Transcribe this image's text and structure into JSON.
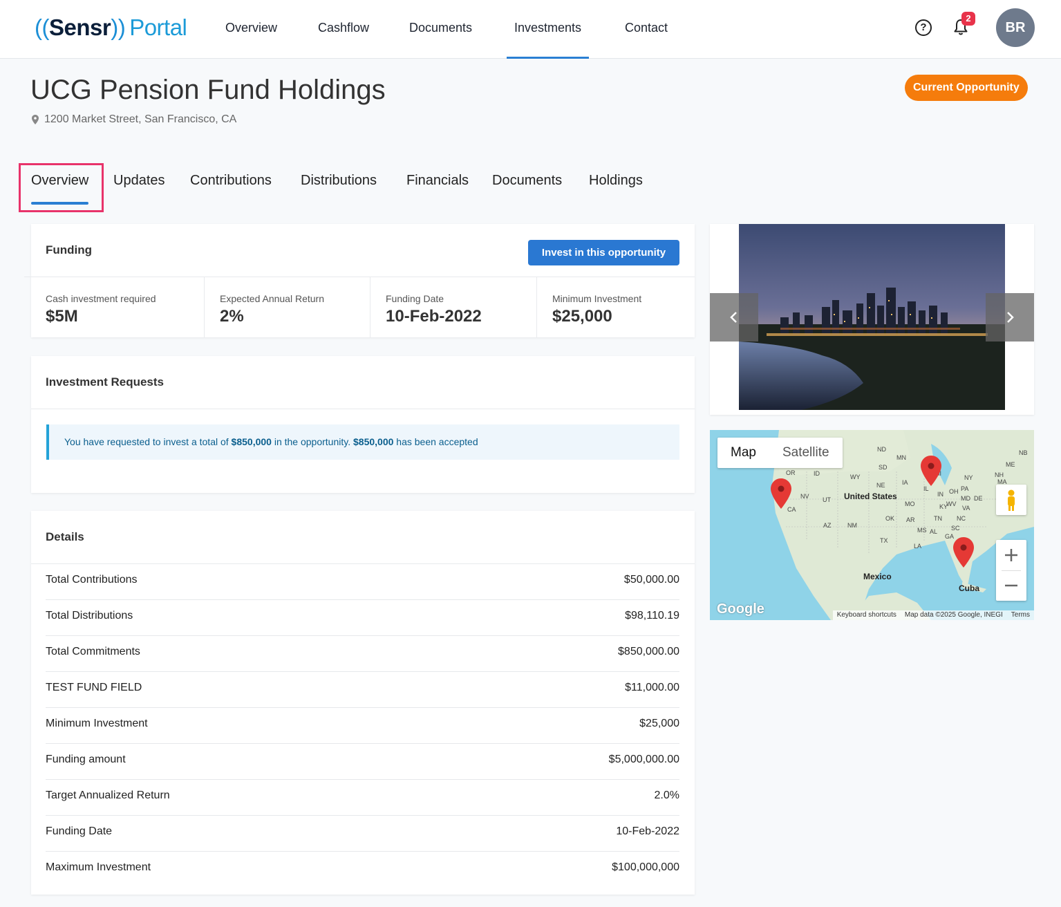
{
  "app": {
    "logo_brand": "Sensr",
    "logo_portal": "Portal"
  },
  "topnav": {
    "items": [
      {
        "label": "Overview"
      },
      {
        "label": "Cashflow"
      },
      {
        "label": "Documents"
      },
      {
        "label": "Investments"
      },
      {
        "label": "Contact"
      }
    ],
    "active": "Investments",
    "notifications_count": "2",
    "user_initials": "BR"
  },
  "header": {
    "title": "UCG Pension Fund Holdings",
    "address": "1200 Market Street, San Francisco, CA",
    "status_badge": "Current Opportunity"
  },
  "tabs": {
    "items": [
      {
        "label": "Overview"
      },
      {
        "label": "Updates"
      },
      {
        "label": "Contributions"
      },
      {
        "label": "Distributions"
      },
      {
        "label": "Financials"
      },
      {
        "label": "Documents"
      },
      {
        "label": "Holdings"
      }
    ],
    "active": "Overview"
  },
  "funding": {
    "title": "Funding",
    "invest_button": "Invest in this opportunity",
    "metrics": [
      {
        "label": "Cash investment required",
        "value": "$5M"
      },
      {
        "label": "Expected Annual Return",
        "value": "2%"
      },
      {
        "label": "Funding Date",
        "value": "10-Feb-2022"
      },
      {
        "label": "Minimum Investment",
        "value": "$25,000"
      }
    ]
  },
  "requests": {
    "title": "Investment Requests",
    "message_prefix": "You have requested to invest a total of ",
    "requested_amount": "$850,000",
    "message_middle": " in the opportunity. ",
    "accepted_amount": "$850,000",
    "message_suffix": " has been accepted"
  },
  "details": {
    "title": "Details",
    "rows": [
      {
        "label": "Total Contributions",
        "value": "$50,000.00"
      },
      {
        "label": "Total Distributions",
        "value": "$98,110.19"
      },
      {
        "label": "Total Commitments",
        "value": "$850,000.00"
      },
      {
        "label": "TEST FUND FIELD",
        "value": "$11,000.00"
      },
      {
        "label": "Minimum Investment",
        "value": "$25,000"
      },
      {
        "label": "Funding amount",
        "value": "$5,000,000.00"
      },
      {
        "label": "Target Annualized Return",
        "value": "2.0%"
      },
      {
        "label": "Funding Date",
        "value": "10-Feb-2022"
      },
      {
        "label": "Maximum Investment",
        "value": "$100,000,000"
      }
    ]
  },
  "map": {
    "type_map": "Map",
    "type_satellite": "Satellite",
    "active_type": "Map",
    "labels": {
      "united_states": "United States",
      "mexico": "Mexico",
      "cuba": "Cuba"
    },
    "footer": {
      "shortcuts": "Keyboard shortcuts",
      "data": "Map data ©2025 Google, INEGI",
      "terms": "Terms"
    },
    "google_logo": "Google"
  },
  "colors": {
    "accent": "#2a7fd3",
    "badge_orange": "#f57c0c",
    "notification_red": "#e8334a"
  }
}
